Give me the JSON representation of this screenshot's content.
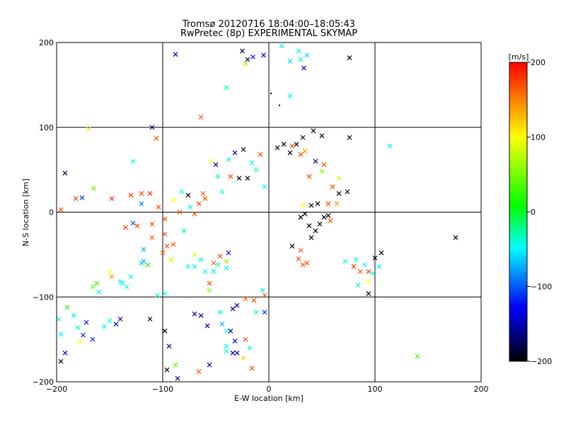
{
  "chart_data": {
    "type": "scatter",
    "title": "Tromsø 20120716 18:04:00–18:05:43",
    "subtitle": "RwPretec (8p) EXPERIMENTAL SKYMAP",
    "xlabel": "E-W location [km]",
    "ylabel": "N-S location [km]",
    "xlim": [
      -200,
      200
    ],
    "ylim": [
      -200,
      200
    ],
    "x_ticks": [
      "-200",
      "-100",
      "0",
      "100",
      "200"
    ],
    "y_ticks": [
      "-200",
      "-100",
      "0",
      "100",
      "200"
    ],
    "grid": true,
    "colorbar": {
      "label": "[m/s]",
      "range": [
        -200,
        200
      ],
      "ticks": [
        "200",
        "100",
        "0",
        "-100",
        "-200"
      ],
      "colormap": [
        "#000000",
        "#0000ff",
        "#00ffff",
        "#00ff00",
        "#ffff00",
        "#ff0000"
      ]
    },
    "marker_styles": [
      "x",
      "dot"
    ],
    "points": [
      [
        -88,
        186,
        -150,
        "x"
      ],
      [
        -25,
        190,
        -190,
        "x"
      ],
      [
        -20,
        180,
        -180,
        "x"
      ],
      [
        -22,
        175,
        60,
        "x"
      ],
      [
        -15,
        183,
        -120,
        "x"
      ],
      [
        -5,
        185,
        -130,
        "x"
      ],
      [
        12,
        196,
        -40,
        "x"
      ],
      [
        28,
        190,
        -40,
        "x"
      ],
      [
        30,
        180,
        -40,
        "x"
      ],
      [
        20,
        178,
        -60,
        "x"
      ],
      [
        36,
        185,
        -60,
        "x"
      ],
      [
        33,
        170,
        -130,
        "x"
      ],
      [
        76,
        182,
        -200,
        "x"
      ],
      [
        -40,
        147,
        -40,
        "x"
      ],
      [
        20,
        137,
        -50,
        "x"
      ],
      [
        2,
        140,
        -200,
        "dot"
      ],
      [
        10,
        126,
        -200,
        "dot"
      ],
      [
        -110,
        100,
        -170,
        "x"
      ],
      [
        -106,
        87,
        170,
        "x"
      ],
      [
        -64,
        112,
        170,
        "x"
      ],
      [
        -170,
        98,
        110,
        "x"
      ],
      [
        -128,
        60,
        -40,
        "x"
      ],
      [
        -192,
        46,
        -180,
        "x"
      ],
      [
        -176,
        17,
        -110,
        "x"
      ],
      [
        -182,
        16,
        170,
        "x"
      ],
      [
        -196,
        3,
        170,
        "x"
      ],
      [
        -148,
        16,
        180,
        "x"
      ],
      [
        -165,
        28,
        40,
        "x"
      ],
      [
        -130,
        20,
        180,
        "x"
      ],
      [
        -120,
        22,
        170,
        "x"
      ],
      [
        -112,
        22,
        180,
        "x"
      ],
      [
        -120,
        10,
        -90,
        "x"
      ],
      [
        -124,
        -16,
        170,
        "x"
      ],
      [
        -128,
        -13,
        -100,
        "x"
      ],
      [
        -135,
        -18,
        170,
        "x"
      ],
      [
        -110,
        -30,
        160,
        "x"
      ],
      [
        -118,
        -44,
        -70,
        "x"
      ],
      [
        -98,
        -26,
        170,
        "x"
      ],
      [
        -100,
        -48,
        160,
        "x"
      ],
      [
        -96,
        -40,
        170,
        "x"
      ],
      [
        -90,
        -38,
        170,
        "x"
      ],
      [
        -80,
        -22,
        -30,
        "x"
      ],
      [
        -92,
        -56,
        80,
        "x"
      ],
      [
        -120,
        -60,
        -60,
        "x"
      ],
      [
        -118,
        -58,
        -70,
        "x"
      ],
      [
        -114,
        -62,
        20,
        "x"
      ],
      [
        -150,
        -70,
        100,
        "x"
      ],
      [
        -148,
        -76,
        140,
        "x"
      ],
      [
        -140,
        -82,
        -40,
        "x"
      ],
      [
        -134,
        -88,
        -40,
        "x"
      ],
      [
        -138,
        -84,
        -40,
        "x"
      ],
      [
        -130,
        -76,
        -40,
        "x"
      ],
      [
        -162,
        -84,
        30,
        "x"
      ],
      [
        -166,
        -88,
        40,
        "x"
      ],
      [
        -160,
        -94,
        -40,
        "x"
      ],
      [
        -105,
        -98,
        -40,
        "x"
      ],
      [
        -98,
        -96,
        -40,
        "x"
      ],
      [
        -190,
        -112,
        20,
        "x"
      ],
      [
        -184,
        -122,
        -40,
        "x"
      ],
      [
        -172,
        -130,
        -120,
        "x"
      ],
      [
        -180,
        -136,
        -40,
        "x"
      ],
      [
        -198,
        -126,
        -40,
        "x"
      ],
      [
        -196,
        -144,
        -40,
        "x"
      ],
      [
        -192,
        -166,
        -150,
        "x"
      ],
      [
        -196,
        -176,
        -200,
        "x"
      ],
      [
        -175,
        -145,
        -120,
        "x"
      ],
      [
        -166,
        -150,
        -120,
        "x"
      ],
      [
        -178,
        -152,
        100,
        "x"
      ],
      [
        -155,
        -135,
        -40,
        "x"
      ],
      [
        -150,
        -128,
        -40,
        "x"
      ],
      [
        -144,
        -132,
        -150,
        "x"
      ],
      [
        -140,
        -126,
        -150,
        "x"
      ],
      [
        -112,
        -126,
        -200,
        "x"
      ],
      [
        -98,
        -140,
        -200,
        "x"
      ],
      [
        -94,
        -158,
        -150,
        "x"
      ],
      [
        -88,
        -180,
        40,
        "x"
      ],
      [
        -96,
        -186,
        -190,
        "x"
      ],
      [
        -86,
        -196,
        -160,
        "x"
      ],
      [
        -66,
        -188,
        170,
        "x"
      ],
      [
        -56,
        -180,
        -150,
        "x"
      ],
      [
        -58,
        -134,
        -150,
        "x"
      ],
      [
        -64,
        -122,
        -150,
        "x"
      ],
      [
        -70,
        -120,
        -150,
        "x"
      ],
      [
        -46,
        -118,
        -40,
        "x"
      ],
      [
        -44,
        -132,
        -70,
        "x"
      ],
      [
        -40,
        -140,
        -40,
        "x"
      ],
      [
        -36,
        -140,
        -150,
        "x"
      ],
      [
        -32,
        -152,
        -130,
        "x"
      ],
      [
        -40,
        -158,
        -40,
        "x"
      ],
      [
        -40,
        -164,
        -40,
        "x"
      ],
      [
        -34,
        -166,
        -150,
        "x"
      ],
      [
        -22,
        -150,
        170,
        "x"
      ],
      [
        -30,
        -166,
        -150,
        "x"
      ],
      [
        -18,
        -160,
        -40,
        "x"
      ],
      [
        -16,
        -184,
        170,
        "x"
      ],
      [
        -24,
        -172,
        120,
        "x"
      ],
      [
        -34,
        -114,
        -160,
        "x"
      ],
      [
        -30,
        -110,
        -150,
        "x"
      ],
      [
        -22,
        -102,
        160,
        "x"
      ],
      [
        -14,
        -104,
        170,
        "x"
      ],
      [
        -12,
        -118,
        -40,
        "x"
      ],
      [
        -4,
        -118,
        -110,
        "x"
      ],
      [
        -4,
        -98,
        160,
        "x"
      ],
      [
        -6,
        -92,
        -40,
        "x"
      ],
      [
        -56,
        -92,
        60,
        "x"
      ],
      [
        -56,
        -84,
        170,
        "x"
      ],
      [
        -52,
        -70,
        -40,
        "x"
      ],
      [
        -48,
        -62,
        -40,
        "x"
      ],
      [
        -40,
        -58,
        60,
        "x"
      ],
      [
        -40,
        -66,
        -40,
        "x"
      ],
      [
        -38,
        -48,
        -120,
        "x"
      ],
      [
        -52,
        -60,
        160,
        "x"
      ],
      [
        -46,
        -52,
        170,
        "x"
      ],
      [
        -60,
        -70,
        -40,
        "x"
      ],
      [
        -70,
        -64,
        -40,
        "x"
      ],
      [
        -76,
        -64,
        -40,
        "x"
      ],
      [
        -64,
        -56,
        -40,
        "x"
      ],
      [
        -70,
        -50,
        80,
        "x"
      ],
      [
        28,
        -55,
        170,
        "x"
      ],
      [
        32,
        -62,
        170,
        "x"
      ],
      [
        36,
        -60,
        170,
        "x"
      ],
      [
        30,
        -45,
        170,
        "x"
      ],
      [
        22,
        -40,
        -200,
        "x"
      ],
      [
        40,
        -30,
        -200,
        "x"
      ],
      [
        44,
        -22,
        -200,
        "x"
      ],
      [
        38,
        -16,
        -200,
        "x"
      ],
      [
        48,
        -14,
        -200,
        "x"
      ],
      [
        52,
        -6,
        -200,
        "x"
      ],
      [
        56,
        -4,
        -200,
        "x"
      ],
      [
        30,
        -6,
        -200,
        "x"
      ],
      [
        34,
        -2,
        -200,
        "x"
      ],
      [
        40,
        8,
        -200,
        "x"
      ],
      [
        46,
        10,
        -200,
        "x"
      ],
      [
        32,
        8,
        100,
        "x"
      ],
      [
        56,
        10,
        170,
        "x"
      ],
      [
        64,
        10,
        140,
        "x"
      ],
      [
        74,
        24,
        -200,
        "x"
      ],
      [
        66,
        22,
        -200,
        "x"
      ],
      [
        58,
        -10,
        170,
        "x"
      ],
      [
        82,
        -56,
        -40,
        "x"
      ],
      [
        90,
        -62,
        -40,
        "x"
      ],
      [
        94,
        -70,
        170,
        "x"
      ],
      [
        98,
        -72,
        -40,
        "x"
      ],
      [
        104,
        -64,
        -40,
        "x"
      ],
      [
        106,
        -48,
        -200,
        "x"
      ],
      [
        100,
        -54,
        -200,
        "x"
      ],
      [
        94,
        -82,
        100,
        "x"
      ],
      [
        94,
        -96,
        -190,
        "x"
      ],
      [
        84,
        -86,
        -40,
        "x"
      ],
      [
        80,
        -64,
        170,
        "x"
      ],
      [
        86,
        -70,
        170,
        "x"
      ],
      [
        72,
        -58,
        -40,
        "x"
      ],
      [
        176,
        -30,
        -200,
        "x"
      ],
      [
        140,
        -170,
        30,
        "x"
      ],
      [
        114,
        78,
        -40,
        "x"
      ],
      [
        76,
        88,
        -200,
        "x"
      ],
      [
        50,
        90,
        -200,
        "x"
      ],
      [
        32,
        88,
        -200,
        "x"
      ],
      [
        42,
        96,
        -200,
        "x"
      ],
      [
        20,
        70,
        -200,
        "x"
      ],
      [
        26,
        80,
        -200,
        "x"
      ],
      [
        14,
        80,
        -200,
        "x"
      ],
      [
        8,
        76,
        -200,
        "x"
      ],
      [
        22,
        78,
        170,
        "x"
      ],
      [
        34,
        72,
        140,
        "x"
      ],
      [
        52,
        56,
        170,
        "x"
      ],
      [
        38,
        42,
        170,
        "x"
      ],
      [
        50,
        48,
        60,
        "x"
      ],
      [
        44,
        60,
        -150,
        "x"
      ],
      [
        30,
        68,
        170,
        "x"
      ],
      [
        60,
        30,
        170,
        "x"
      ],
      [
        66,
        40,
        80,
        "x"
      ],
      [
        -50,
        56,
        -150,
        "x"
      ],
      [
        -54,
        60,
        100,
        "x"
      ],
      [
        -48,
        42,
        -40,
        "x"
      ],
      [
        -38,
        62,
        -40,
        "x"
      ],
      [
        -32,
        70,
        -150,
        "x"
      ],
      [
        -24,
        74,
        -200,
        "x"
      ],
      [
        -16,
        58,
        -40,
        "x"
      ],
      [
        -12,
        50,
        -40,
        "x"
      ],
      [
        -8,
        68,
        170,
        "x"
      ],
      [
        -4,
        30,
        -40,
        "x"
      ],
      [
        -20,
        40,
        -200,
        "x"
      ],
      [
        -28,
        40,
        -200,
        "x"
      ],
      [
        -36,
        42,
        170,
        "x"
      ],
      [
        -44,
        24,
        -40,
        "x"
      ],
      [
        -60,
        16,
        170,
        "x"
      ],
      [
        -62,
        22,
        160,
        "x"
      ],
      [
        -76,
        20,
        -200,
        "x"
      ],
      [
        -82,
        24,
        -40,
        "x"
      ],
      [
        -90,
        14,
        100,
        "x"
      ],
      [
        -98,
        -8,
        170,
        "x"
      ],
      [
        -84,
        0,
        170,
        "x"
      ],
      [
        -74,
        6,
        -40,
        "x"
      ],
      [
        -66,
        10,
        170,
        "x"
      ],
      [
        -70,
        -2,
        170,
        "x"
      ],
      [
        -104,
        6,
        170,
        "x"
      ],
      [
        -110,
        -14,
        170,
        "x"
      ]
    ]
  }
}
